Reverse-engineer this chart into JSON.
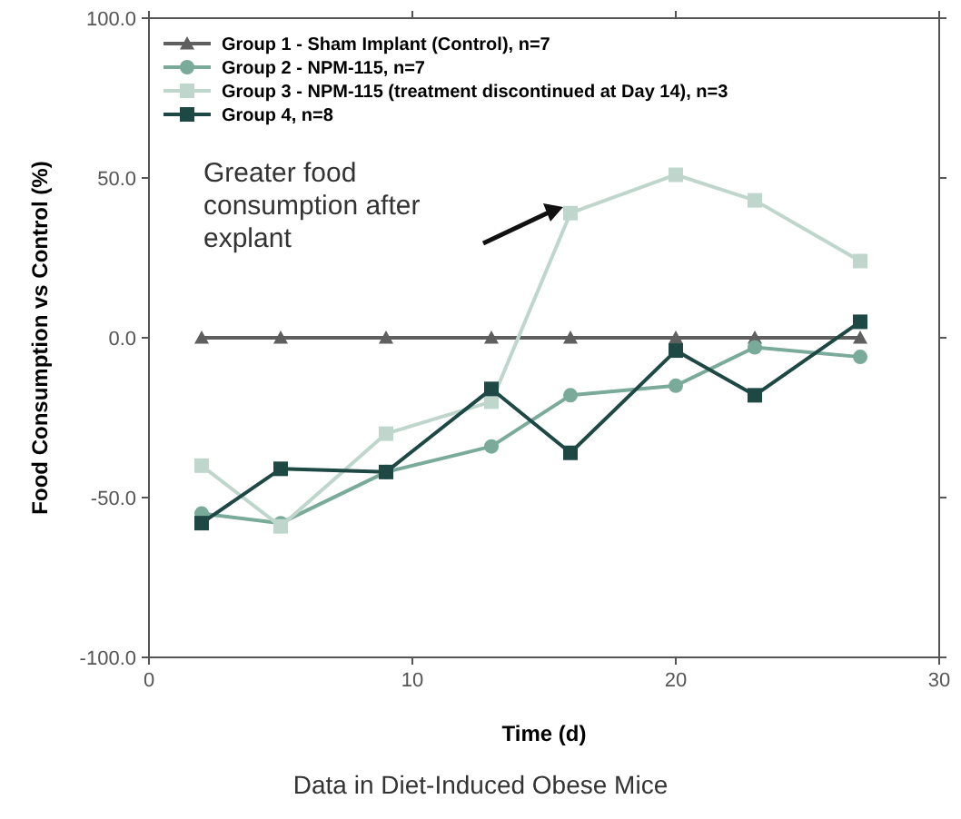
{
  "chart_data": {
    "type": "line",
    "xlabel": "Time (d)",
    "ylabel": "Food Consumption vs Control (%)",
    "x": [
      2,
      5,
      9,
      13,
      16,
      20,
      23,
      27
    ],
    "series": [
      {
        "name": "Group 1 - Sham Implant (Control), n=7",
        "color": "#5f5f5f",
        "marker": "triangle",
        "values": [
          0,
          0,
          0,
          0,
          0,
          0,
          0,
          0
        ]
      },
      {
        "name": "Group 2 - NPM-115, n=7",
        "color": "#7aab9a",
        "marker": "circle",
        "values": [
          -55,
          -58,
          -42,
          -34,
          -18,
          -15,
          -3,
          -6
        ]
      },
      {
        "name": "Group 3 - NPM-115 (treatment discontinued at Day 14), n=3",
        "color": "#bfd6cd",
        "marker": "square",
        "values": [
          -40,
          -59,
          -30,
          -20,
          39,
          51,
          43,
          24
        ]
      },
      {
        "name": "Group 4, n=8",
        "color": "#1d4844",
        "marker": "square",
        "values": [
          -58,
          -41,
          -42,
          -16,
          -36,
          -4,
          -18,
          5
        ]
      }
    ],
    "xlim": [
      0,
      30
    ],
    "xticks": [
      0,
      10,
      20,
      30
    ],
    "ylim": [
      -100,
      100
    ],
    "yticks": [
      {
        "value": -100,
        "label": "-100.0"
      },
      {
        "value": -50,
        "label": "-50.0"
      },
      {
        "value": 0,
        "label": "0.0"
      },
      {
        "value": 50,
        "label": "50.0"
      },
      {
        "value": 100,
        "label": "100.0"
      }
    ],
    "legend": "top left",
    "grid": false,
    "annotations": [
      "Greater food consumption after explant",
      "Data in Diet-Induced Obese Mice"
    ]
  }
}
